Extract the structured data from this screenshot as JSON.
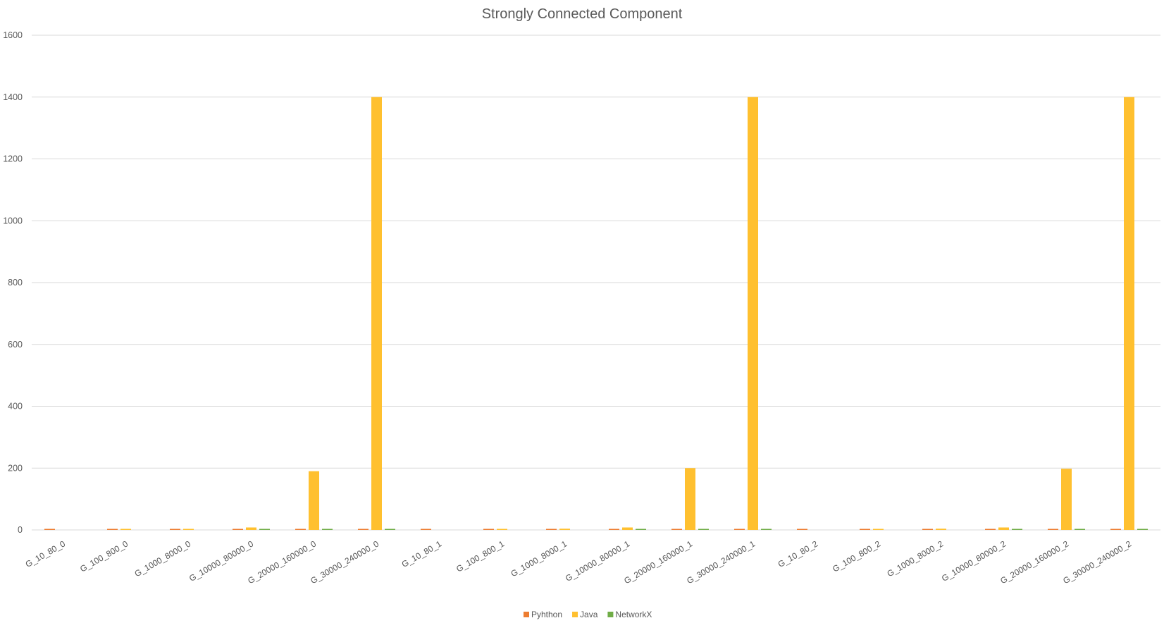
{
  "chart_data": {
    "type": "bar",
    "title": "Strongly Connected Component",
    "xlabel": "",
    "ylabel": "",
    "ylim": [
      0,
      1600
    ],
    "y_ticks": [
      0,
      200,
      400,
      600,
      800,
      1000,
      1200,
      1400,
      1600
    ],
    "grid": true,
    "legend_position": "bottom",
    "categories": [
      "G_10_80_0",
      "G_100_800_0",
      "G_1000_8000_0",
      "G_10000_80000_0",
      "G_20000_160000_0",
      "G_30000_240000_0",
      "G_10_80_1",
      "G_100_800_1",
      "G_1000_8000_1",
      "G_10000_80000_1",
      "G_20000_160000_1",
      "G_30000_240000_1",
      "G_10_80_2",
      "G_100_800_2",
      "G_1000_8000_2",
      "G_10000_80000_2",
      "G_20000_160000_2",
      "G_30000_240000_2"
    ],
    "series": [
      {
        "name": "Pyhthon",
        "color": "#ed7d31",
        "values": [
          0.5,
          1,
          1,
          2,
          2,
          2,
          1,
          1,
          1,
          2,
          2,
          2,
          1,
          1,
          1,
          2,
          2,
          2
        ]
      },
      {
        "name": "Java",
        "color": "#ffc02f",
        "values": [
          0,
          1,
          1,
          8,
          190,
          1400,
          0,
          1,
          4,
          8,
          200,
          1400,
          0,
          1,
          4,
          8,
          198,
          1400
        ]
      },
      {
        "name": "NetworkX",
        "color": "#70ad47",
        "values": [
          0,
          0,
          0,
          2,
          2,
          2,
          0,
          0,
          0,
          2,
          2,
          2,
          0,
          0,
          0,
          2,
          2,
          2
        ]
      }
    ]
  }
}
